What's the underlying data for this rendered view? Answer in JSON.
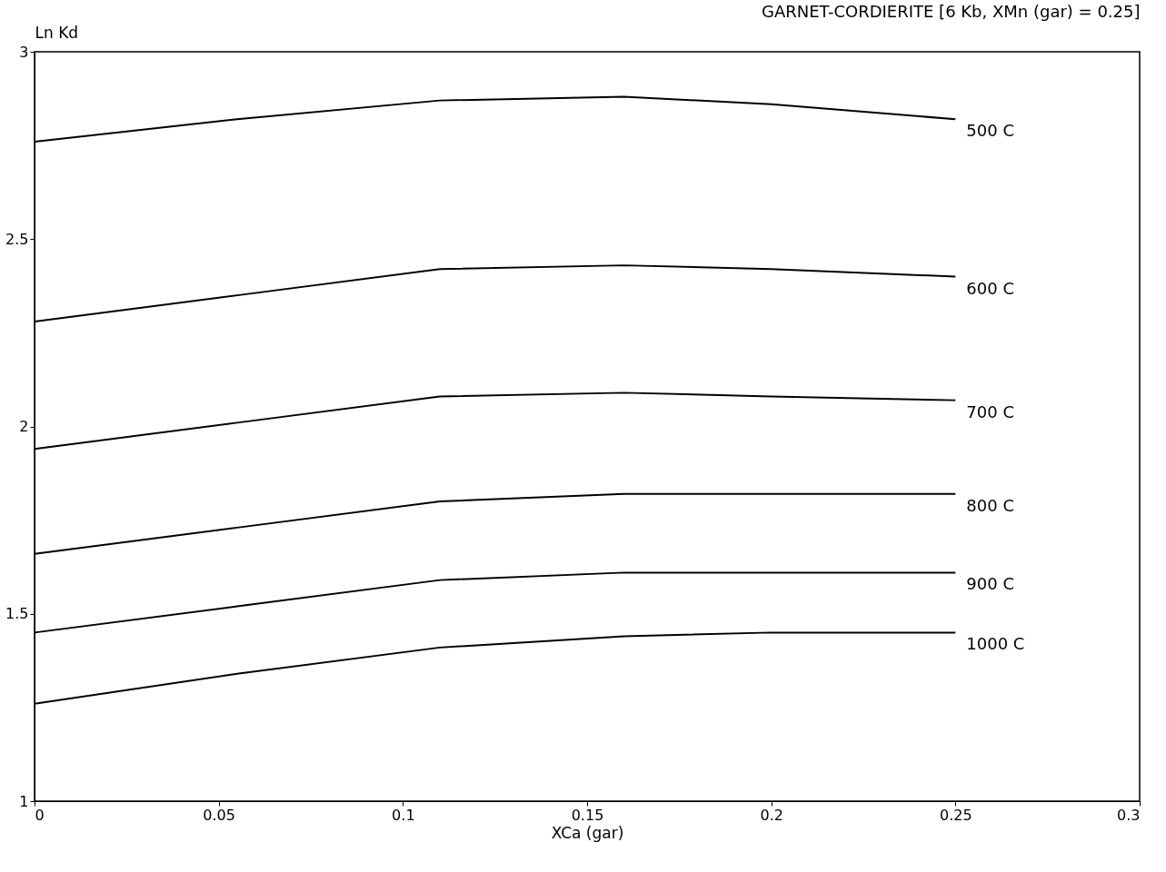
{
  "chart_data": {
    "type": "line",
    "title": "GARNET-CORDIERITE [6 Kb, XMn (gar) = 0.25]",
    "xlabel": "XCa (gar)",
    "ylabel": "Ln Kd",
    "x": [
      0,
      0.055,
      0.11,
      0.16,
      0.2,
      0.25
    ],
    "series": [
      {
        "name": "500 C",
        "color": "#000000",
        "values": [
          2.76,
          2.82,
          2.87,
          2.88,
          2.86,
          2.82
        ]
      },
      {
        "name": "600 C",
        "color": "#000000",
        "values": [
          2.28,
          2.35,
          2.42,
          2.43,
          2.42,
          2.4
        ]
      },
      {
        "name": "700 C",
        "color": "#000000",
        "values": [
          1.94,
          2.01,
          2.08,
          2.09,
          2.08,
          2.07
        ]
      },
      {
        "name": "800 C",
        "color": "#000000",
        "values": [
          1.66,
          1.73,
          1.8,
          1.82,
          1.82,
          1.82
        ]
      },
      {
        "name": "900 C",
        "color": "#000000",
        "values": [
          1.45,
          1.52,
          1.59,
          1.61,
          1.61,
          1.61
        ]
      },
      {
        "name": "1000 C",
        "color": "#000000",
        "values": [
          1.26,
          1.34,
          1.41,
          1.44,
          1.45,
          1.45
        ]
      }
    ],
    "xlim": [
      0,
      0.3
    ],
    "xticks": [
      0,
      0.05,
      0.1,
      0.15,
      0.2,
      0.25,
      0.3
    ],
    "ylim": [
      1,
      3
    ],
    "yticks": [
      1,
      1.5,
      2,
      2.5,
      3
    ],
    "grid": false,
    "legend": false,
    "marker": "none",
    "line_style": "solid"
  }
}
